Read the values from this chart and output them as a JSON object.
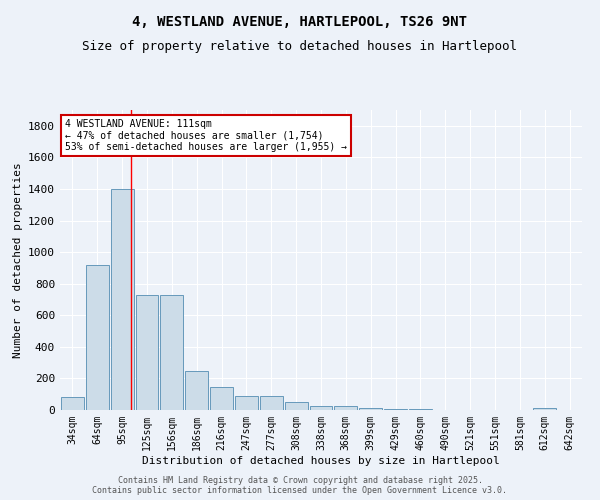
{
  "title": "4, WESTLAND AVENUE, HARTLEPOOL, TS26 9NT",
  "subtitle": "Size of property relative to detached houses in Hartlepool",
  "xlabel": "Distribution of detached houses by size in Hartlepool",
  "ylabel": "Number of detached properties",
  "categories": [
    "34sqm",
    "64sqm",
    "95sqm",
    "125sqm",
    "156sqm",
    "186sqm",
    "216sqm",
    "247sqm",
    "277sqm",
    "308sqm",
    "338sqm",
    "368sqm",
    "399sqm",
    "429sqm",
    "460sqm",
    "490sqm",
    "521sqm",
    "551sqm",
    "581sqm",
    "612sqm",
    "642sqm"
  ],
  "values": [
    80,
    920,
    1400,
    730,
    730,
    245,
    145,
    90,
    90,
    50,
    25,
    25,
    15,
    5,
    5,
    0,
    0,
    0,
    0,
    15,
    0
  ],
  "bar_color": "#ccdce8",
  "bar_edge_color": "#6699bb",
  "background_color": "#edf2f9",
  "grid_color": "#ffffff",
  "red_line_x": 2.37,
  "annotation_text": "4 WESTLAND AVENUE: 111sqm\n← 47% of detached houses are smaller (1,754)\n53% of semi-detached houses are larger (1,955) →",
  "annotation_box_color": "#ffffff",
  "annotation_box_edge": "#cc0000",
  "ylim": [
    0,
    1900
  ],
  "yticks": [
    0,
    200,
    400,
    600,
    800,
    1000,
    1200,
    1400,
    1600,
    1800
  ],
  "footer_line1": "Contains HM Land Registry data © Crown copyright and database right 2025.",
  "footer_line2": "Contains public sector information licensed under the Open Government Licence v3.0.",
  "title_fontsize": 10,
  "subtitle_fontsize": 9,
  "tick_fontsize": 7,
  "ylabel_fontsize": 8,
  "xlabel_fontsize": 8,
  "annotation_fontsize": 7,
  "footer_fontsize": 6
}
